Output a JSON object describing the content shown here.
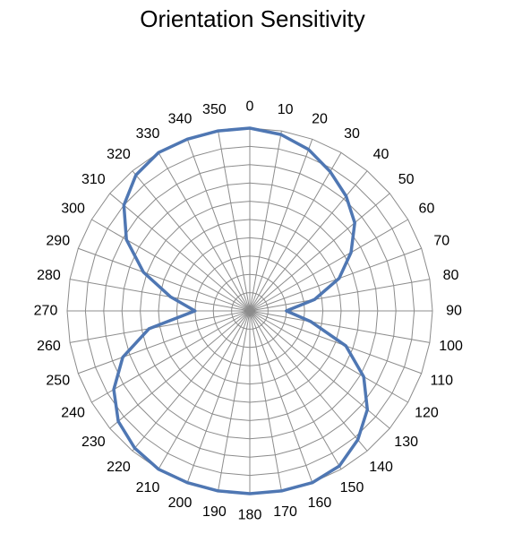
{
  "chart_data": {
    "type": "radar",
    "title": "Orientation Sensitivity",
    "categories": [
      "0",
      "10",
      "20",
      "30",
      "40",
      "50",
      "60",
      "70",
      "80",
      "90",
      "100",
      "110",
      "120",
      "130",
      "140",
      "150",
      "160",
      "170",
      "180",
      "190",
      "200",
      "210",
      "220",
      "230",
      "240",
      "250",
      "260",
      "270",
      "280",
      "290",
      "300",
      "310",
      "320",
      "330",
      "340",
      "350"
    ],
    "series": [
      {
        "values": [
          1.0,
          0.98,
          0.94,
          0.88,
          0.82,
          0.75,
          0.64,
          0.52,
          0.36,
          0.2,
          0.34,
          0.56,
          0.72,
          0.84,
          0.92,
          0.98,
          1.0,
          1.0,
          1.0,
          1.0,
          1.0,
          1.0,
          0.98,
          0.94,
          0.86,
          0.74,
          0.56,
          0.3,
          0.44,
          0.62,
          0.78,
          0.9,
          0.97,
          1.0,
          1.0,
          1.0
        ],
        "color": "#4f77b3"
      }
    ],
    "rlim": [
      0,
      1
    ],
    "ring_count": 10,
    "grid": true,
    "legend": "none"
  }
}
